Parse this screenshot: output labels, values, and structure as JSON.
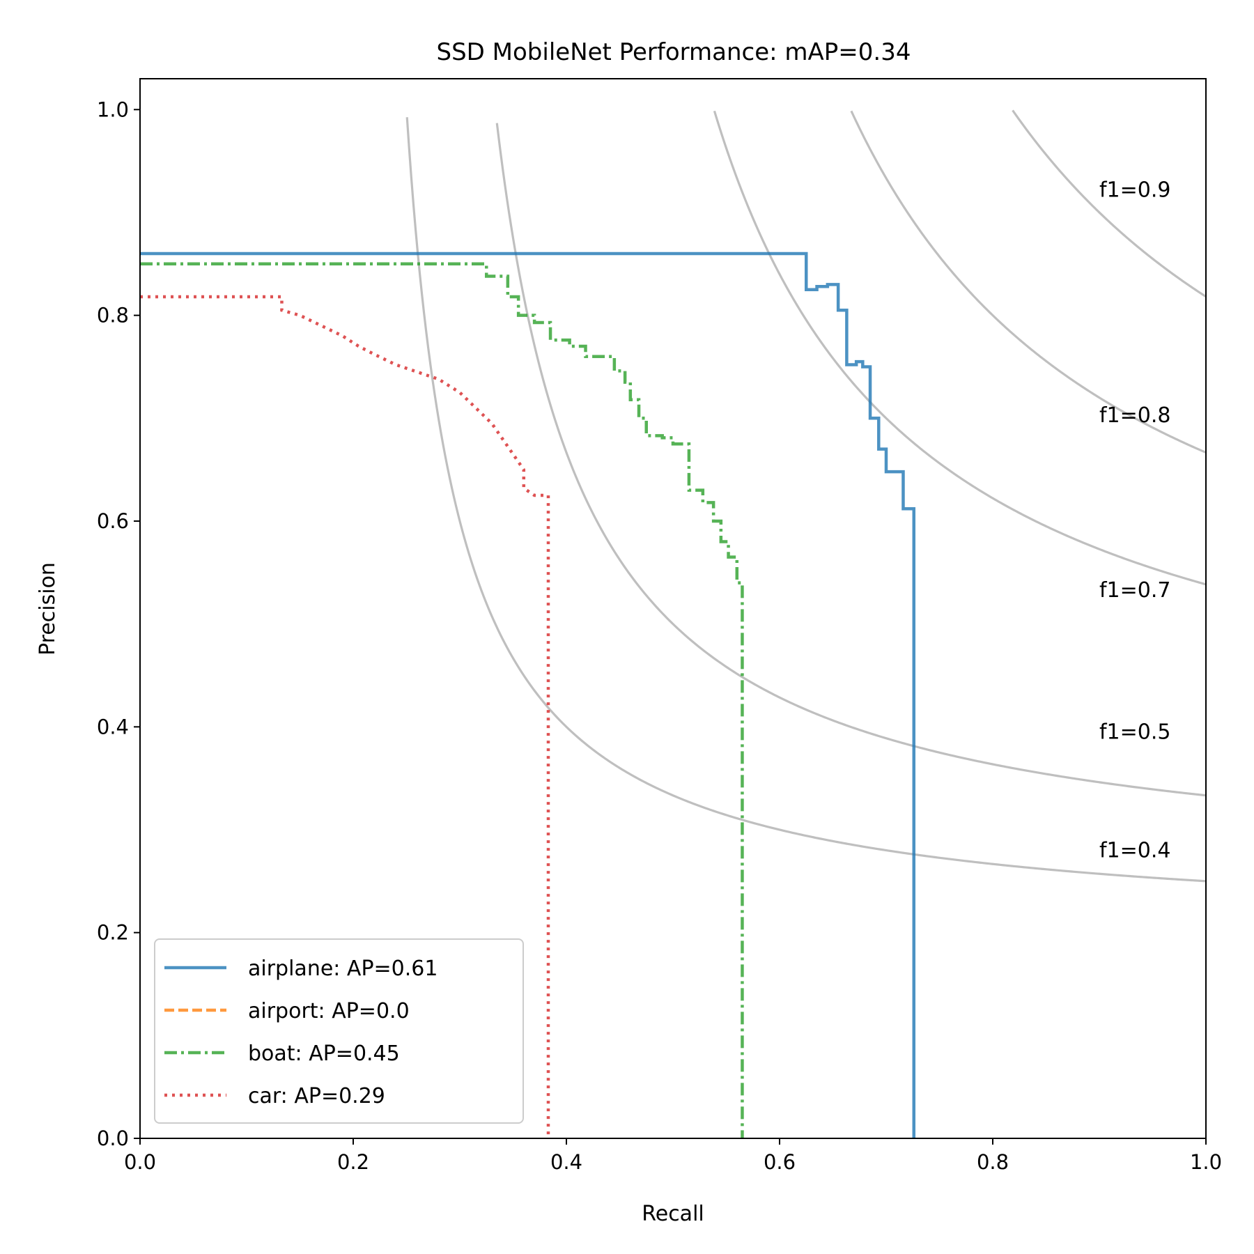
{
  "chart_data": {
    "type": "line",
    "title": "SSD MobileNet Performance:  mAP=0.34",
    "xlabel": "Recall",
    "ylabel": "Precision",
    "xlim": [
      0.0,
      1.0
    ],
    "ylim": [
      0.0,
      1.03
    ],
    "xticks": [
      "0.0",
      "0.2",
      "0.4",
      "0.6",
      "0.8",
      "1.0"
    ],
    "yticks": [
      "0.0",
      "0.2",
      "0.4",
      "0.6",
      "0.8",
      "1.0"
    ],
    "grid": false,
    "legend_position": "lower-left",
    "iso_f1": [
      {
        "f1": 0.4,
        "label": "f1=0.4",
        "label_y": 0.28
      },
      {
        "f1": 0.5,
        "label": "f1=0.5",
        "label_y": 0.395
      },
      {
        "f1": 0.7,
        "label": "f1=0.7",
        "label_y": 0.533
      },
      {
        "f1": 0.8,
        "label": "f1=0.8",
        "label_y": 0.703
      },
      {
        "f1": 0.9,
        "label": "f1=0.9",
        "label_y": 0.922
      }
    ],
    "series": [
      {
        "name": "airplane: AP=0.61",
        "color": "#1f77b4",
        "dash": "solid",
        "points": [
          [
            0.0,
            0.86
          ],
          [
            0.625,
            0.86
          ],
          [
            0.625,
            0.825
          ],
          [
            0.635,
            0.825
          ],
          [
            0.635,
            0.828
          ],
          [
            0.645,
            0.828
          ],
          [
            0.645,
            0.83
          ],
          [
            0.655,
            0.83
          ],
          [
            0.655,
            0.805
          ],
          [
            0.663,
            0.805
          ],
          [
            0.663,
            0.752
          ],
          [
            0.672,
            0.752
          ],
          [
            0.672,
            0.755
          ],
          [
            0.678,
            0.755
          ],
          [
            0.678,
            0.75
          ],
          [
            0.685,
            0.75
          ],
          [
            0.685,
            0.7
          ],
          [
            0.693,
            0.7
          ],
          [
            0.693,
            0.67
          ],
          [
            0.7,
            0.67
          ],
          [
            0.7,
            0.648
          ],
          [
            0.716,
            0.648
          ],
          [
            0.716,
            0.612
          ],
          [
            0.726,
            0.612
          ],
          [
            0.726,
            0.0
          ]
        ]
      },
      {
        "name": "airport: AP=0.0",
        "color": "#ff7f0e",
        "dash": "dashed",
        "points": []
      },
      {
        "name": "boat: AP=0.45",
        "color": "#2ca02c",
        "dash": "dashdot",
        "points": [
          [
            0.0,
            0.85
          ],
          [
            0.325,
            0.85
          ],
          [
            0.325,
            0.838
          ],
          [
            0.345,
            0.838
          ],
          [
            0.345,
            0.818
          ],
          [
            0.355,
            0.818
          ],
          [
            0.355,
            0.8
          ],
          [
            0.37,
            0.8
          ],
          [
            0.37,
            0.793
          ],
          [
            0.385,
            0.793
          ],
          [
            0.385,
            0.776
          ],
          [
            0.403,
            0.776
          ],
          [
            0.403,
            0.77
          ],
          [
            0.418,
            0.77
          ],
          [
            0.418,
            0.76
          ],
          [
            0.445,
            0.76
          ],
          [
            0.445,
            0.746
          ],
          [
            0.455,
            0.746
          ],
          [
            0.455,
            0.735
          ],
          [
            0.46,
            0.735
          ],
          [
            0.46,
            0.718
          ],
          [
            0.468,
            0.718
          ],
          [
            0.468,
            0.7
          ],
          [
            0.475,
            0.7
          ],
          [
            0.475,
            0.683
          ],
          [
            0.49,
            0.683
          ],
          [
            0.49,
            0.681
          ],
          [
            0.5,
            0.681
          ],
          [
            0.5,
            0.675
          ],
          [
            0.515,
            0.675
          ],
          [
            0.515,
            0.63
          ],
          [
            0.528,
            0.63
          ],
          [
            0.528,
            0.618
          ],
          [
            0.538,
            0.618
          ],
          [
            0.538,
            0.6
          ],
          [
            0.545,
            0.6
          ],
          [
            0.545,
            0.58
          ],
          [
            0.552,
            0.58
          ],
          [
            0.552,
            0.565
          ],
          [
            0.56,
            0.565
          ],
          [
            0.56,
            0.54
          ],
          [
            0.565,
            0.54
          ],
          [
            0.565,
            0.0
          ]
        ]
      },
      {
        "name": "car: AP=0.29",
        "color": "#d62728",
        "dash": "dotted",
        "points": [
          [
            0.0,
            0.818
          ],
          [
            0.133,
            0.818
          ],
          [
            0.133,
            0.805
          ],
          [
            0.15,
            0.8
          ],
          [
            0.17,
            0.79
          ],
          [
            0.19,
            0.78
          ],
          [
            0.205,
            0.77
          ],
          [
            0.22,
            0.762
          ],
          [
            0.24,
            0.752
          ],
          [
            0.26,
            0.745
          ],
          [
            0.28,
            0.738
          ],
          [
            0.3,
            0.725
          ],
          [
            0.31,
            0.715
          ],
          [
            0.32,
            0.705
          ],
          [
            0.33,
            0.695
          ],
          [
            0.34,
            0.68
          ],
          [
            0.35,
            0.665
          ],
          [
            0.36,
            0.65
          ],
          [
            0.36,
            0.632
          ],
          [
            0.37,
            0.625
          ],
          [
            0.383,
            0.625
          ],
          [
            0.383,
            0.0
          ]
        ]
      }
    ]
  }
}
